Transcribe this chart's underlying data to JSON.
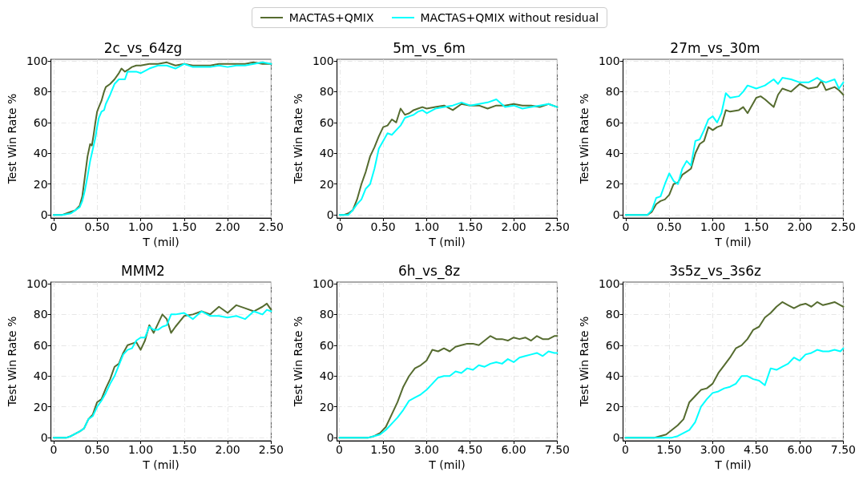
{
  "chart_data": [
    {
      "type": "line",
      "title": "2c_vs_64zg",
      "xlabel": "T (mil)",
      "ylabel": "Test Win Rate %",
      "legend": "top",
      "grid": true,
      "line_style": "solid",
      "xlim": [
        -0.03,
        2.5
      ],
      "xticks": [
        {
          "value": 0,
          "label": "0"
        },
        {
          "value": 0.5,
          "label": "0.50"
        },
        {
          "value": 1,
          "label": "1.00"
        },
        {
          "value": 1.5,
          "label": "1.50"
        },
        {
          "value": 2,
          "label": "2.00"
        },
        {
          "value": 2.5,
          "label": "2.50"
        }
      ],
      "ylim": [
        -2,
        101
      ],
      "yticks": [
        0,
        20,
        40,
        60,
        80,
        100
      ],
      "x": [
        0,
        0.1,
        0.15,
        0.2,
        0.25,
        0.3,
        0.33,
        0.36,
        0.39,
        0.42,
        0.44,
        0.46,
        0.48,
        0.5,
        0.52,
        0.55,
        0.58,
        0.6,
        0.65,
        0.7,
        0.75,
        0.78,
        0.82,
        0.85,
        0.9,
        0.95,
        1.0,
        1.1,
        1.2,
        1.3,
        1.4,
        1.5,
        1.6,
        1.7,
        1.8,
        1.9,
        2.0,
        2.1,
        2.2,
        2.3,
        2.4,
        2.5
      ],
      "series": [
        {
          "name": "MACTAS+QMIX",
          "color": "#556b2f",
          "values": [
            0,
            0,
            1,
            2,
            3,
            6,
            12,
            25,
            38,
            46,
            45,
            52,
            60,
            67,
            70,
            74,
            80,
            83,
            85,
            88,
            92,
            95,
            93,
            94,
            96,
            97,
            97,
            98,
            98,
            99,
            97,
            98,
            97,
            97,
            97,
            98,
            98,
            98,
            98,
            99,
            98,
            98
          ]
        },
        {
          "name": "MACTAS+QMIX without residual",
          "color": "#00ffff",
          "values": [
            0,
            0,
            0.5,
            1,
            3,
            5,
            9,
            16,
            25,
            35,
            40,
            45,
            50,
            57,
            63,
            67,
            68,
            72,
            78,
            85,
            88,
            88,
            88,
            93,
            93,
            93,
            92,
            95,
            97,
            97,
            95,
            98,
            96,
            96,
            96,
            97,
            96,
            97,
            97,
            98,
            99,
            98
          ]
        }
      ]
    },
    {
      "type": "line",
      "title": "5m_vs_6m",
      "xlabel": "T (mil)",
      "ylabel": "Test Win Rate %",
      "grid": true,
      "line_style": "solid",
      "xlim": [
        -0.03,
        2.5
      ],
      "xticks": [
        {
          "value": 0,
          "label": "0"
        },
        {
          "value": 0.5,
          "label": "0.50"
        },
        {
          "value": 1,
          "label": "1.00"
        },
        {
          "value": 1.5,
          "label": "1.50"
        },
        {
          "value": 2,
          "label": "2.00"
        },
        {
          "value": 2.5,
          "label": "2.50"
        }
      ],
      "ylim": [
        -2,
        101
      ],
      "yticks": [
        0,
        20,
        40,
        60,
        80,
        100
      ],
      "x": [
        0,
        0.05,
        0.1,
        0.15,
        0.2,
        0.25,
        0.3,
        0.35,
        0.4,
        0.45,
        0.5,
        0.55,
        0.6,
        0.65,
        0.7,
        0.75,
        0.8,
        0.85,
        0.9,
        0.95,
        1.0,
        1.1,
        1.2,
        1.3,
        1.4,
        1.5,
        1.6,
        1.7,
        1.8,
        1.9,
        2.0,
        2.1,
        2.2,
        2.3,
        2.4,
        2.5
      ],
      "series": [
        {
          "color": "#556b2f",
          "values": [
            0,
            0,
            1,
            3,
            10,
            20,
            28,
            38,
            44,
            51,
            57,
            58,
            62,
            60,
            69,
            65,
            66,
            68,
            69,
            70,
            69,
            70,
            71,
            68,
            72,
            71,
            71,
            69,
            71,
            71,
            72,
            71,
            71,
            70,
            72,
            70
          ]
        },
        {
          "color": "#00ffff",
          "values": [
            0,
            0,
            0,
            3,
            7,
            10,
            17,
            20,
            30,
            43,
            48,
            53,
            52,
            55,
            58,
            63,
            64,
            65,
            67,
            68,
            66,
            69,
            70,
            71,
            73,
            71,
            72,
            73,
            75,
            70,
            71,
            69,
            70,
            71,
            72,
            70
          ]
        }
      ]
    },
    {
      "type": "line",
      "title": "27m_vs_30m",
      "xlabel": "T (mil)",
      "ylabel": "Test Win Rate %",
      "grid": true,
      "line_style": "solid",
      "xlim": [
        -0.03,
        2.5
      ],
      "xticks": [
        {
          "value": 0,
          "label": "0"
        },
        {
          "value": 0.5,
          "label": "0.50"
        },
        {
          "value": 1,
          "label": "1.00"
        },
        {
          "value": 1.5,
          "label": "1.50"
        },
        {
          "value": 2,
          "label": "2.00"
        },
        {
          "value": 2.5,
          "label": "2.50"
        }
      ],
      "ylim": [
        -2,
        101
      ],
      "yticks": [
        0,
        20,
        40,
        60,
        80,
        100
      ],
      "x": [
        0,
        0.2,
        0.25,
        0.3,
        0.35,
        0.4,
        0.45,
        0.5,
        0.55,
        0.6,
        0.65,
        0.7,
        0.75,
        0.8,
        0.85,
        0.9,
        0.95,
        1.0,
        1.05,
        1.1,
        1.15,
        1.2,
        1.3,
        1.35,
        1.4,
        1.5,
        1.55,
        1.6,
        1.7,
        1.75,
        1.8,
        1.9,
        2.0,
        2.1,
        2.2,
        2.25,
        2.3,
        2.4,
        2.45,
        2.5
      ],
      "series": [
        {
          "color": "#556b2f",
          "values": [
            0,
            0,
            0,
            2,
            7,
            9,
            10,
            13,
            20,
            21,
            26,
            28,
            30,
            40,
            46,
            48,
            57,
            55,
            57,
            58,
            68,
            67,
            68,
            70,
            66,
            76,
            77,
            75,
            70,
            78,
            82,
            80,
            85,
            82,
            83,
            87,
            81,
            83,
            81,
            78
          ]
        },
        {
          "color": "#00ffff",
          "values": [
            0,
            0,
            0,
            3,
            11,
            12,
            20,
            27,
            22,
            20,
            30,
            35,
            32,
            48,
            49,
            55,
            62,
            64,
            60,
            66,
            79,
            76,
            77,
            80,
            84,
            82,
            83,
            84,
            88,
            85,
            89,
            88,
            86,
            86,
            89,
            87,
            86,
            88,
            82,
            86
          ]
        }
      ]
    },
    {
      "type": "line",
      "title": "MMM2",
      "xlabel": "T (mil)",
      "ylabel": "Test Win Rate %",
      "grid": true,
      "line_style": "solid",
      "xlim": [
        -0.03,
        2.5
      ],
      "xticks": [
        {
          "value": 0,
          "label": "0"
        },
        {
          "value": 0.5,
          "label": "0.50"
        },
        {
          "value": 1,
          "label": "1.00"
        },
        {
          "value": 1.5,
          "label": "1.50"
        },
        {
          "value": 2,
          "label": "2.00"
        },
        {
          "value": 2.5,
          "label": "2.50"
        }
      ],
      "ylim": [
        -2,
        101
      ],
      "yticks": [
        0,
        20,
        40,
        60,
        80,
        100
      ],
      "x": [
        0,
        0.15,
        0.2,
        0.3,
        0.35,
        0.4,
        0.45,
        0.5,
        0.55,
        0.6,
        0.65,
        0.7,
        0.75,
        0.8,
        0.85,
        0.9,
        0.95,
        1.0,
        1.05,
        1.1,
        1.15,
        1.2,
        1.25,
        1.3,
        1.35,
        1.4,
        1.5,
        1.6,
        1.7,
        1.8,
        1.9,
        2.0,
        2.1,
        2.2,
        2.3,
        2.4,
        2.45,
        2.5
      ],
      "series": [
        {
          "color": "#556b2f",
          "values": [
            0,
            0,
            1,
            4,
            6,
            12,
            15,
            23,
            25,
            32,
            38,
            46,
            48,
            55,
            60,
            61,
            62,
            57,
            63,
            73,
            68,
            74,
            80,
            77,
            68,
            72,
            79,
            80,
            82,
            80,
            85,
            81,
            86,
            84,
            82,
            85,
            87,
            83
          ]
        },
        {
          "color": "#00ffff",
          "values": [
            0,
            0,
            1,
            4,
            6,
            12,
            14,
            20,
            24,
            29,
            35,
            40,
            47,
            54,
            57,
            58,
            63,
            65,
            65,
            72,
            70,
            70,
            72,
            73,
            80,
            80,
            81,
            77,
            82,
            79,
            79,
            78,
            79,
            77,
            82,
            80,
            83,
            82
          ]
        }
      ]
    },
    {
      "type": "line",
      "title": "6h_vs_8z",
      "xlabel": "T (mil)",
      "ylabel": "Test Win Rate %",
      "grid": true,
      "line_style": "solid",
      "xlim": [
        -0.08,
        7.5
      ],
      "xticks": [
        {
          "value": 0,
          "label": "0"
        },
        {
          "value": 1.5,
          "label": "1.50"
        },
        {
          "value": 3,
          "label": "3.00"
        },
        {
          "value": 4.5,
          "label": "4.50"
        },
        {
          "value": 6,
          "label": "6.00"
        },
        {
          "value": 7.5,
          "label": "7.50"
        }
      ],
      "ylim": [
        -2,
        101
      ],
      "yticks": [
        0,
        20,
        40,
        60,
        80,
        100
      ],
      "x": [
        0,
        0.5,
        1.0,
        1.2,
        1.4,
        1.6,
        1.8,
        2.0,
        2.2,
        2.4,
        2.6,
        2.8,
        3.0,
        3.2,
        3.4,
        3.6,
        3.8,
        4.0,
        4.2,
        4.4,
        4.6,
        4.8,
        5.0,
        5.2,
        5.4,
        5.6,
        5.8,
        6.0,
        6.2,
        6.4,
        6.6,
        6.8,
        7.0,
        7.2,
        7.4,
        7.5
      ],
      "series": [
        {
          "color": "#556b2f",
          "values": [
            0,
            0,
            0,
            1,
            3,
            7,
            15,
            23,
            33,
            40,
            45,
            47,
            50,
            57,
            56,
            58,
            56,
            59,
            60,
            61,
            61,
            60,
            63,
            66,
            64,
            64,
            63,
            65,
            64,
            65,
            63,
            66,
            64,
            64,
            66,
            66
          ]
        },
        {
          "color": "#00ffff",
          "values": [
            0,
            0,
            0,
            1,
            2,
            5,
            9,
            13,
            18,
            24,
            26,
            28,
            31,
            35,
            39,
            40,
            40,
            43,
            42,
            45,
            44,
            47,
            46,
            48,
            49,
            48,
            51,
            49,
            52,
            53,
            54,
            55,
            53,
            56,
            55,
            55
          ]
        }
      ]
    },
    {
      "type": "line",
      "title": "3s5z_vs_3s6z",
      "xlabel": "T (mil)",
      "ylabel": "Test Win Rate %",
      "grid": true,
      "line_style": "solid",
      "xlim": [
        -0.08,
        7.5
      ],
      "xticks": [
        {
          "value": 0,
          "label": "0"
        },
        {
          "value": 1.5,
          "label": "1.50"
        },
        {
          "value": 3,
          "label": "3.00"
        },
        {
          "value": 4.5,
          "label": "4.50"
        },
        {
          "value": 6,
          "label": "6.00"
        },
        {
          "value": 7.5,
          "label": "7.50"
        }
      ],
      "ylim": [
        -2,
        101
      ],
      "yticks": [
        0,
        20,
        40,
        60,
        80,
        100
      ],
      "x": [
        0,
        1.0,
        1.2,
        1.4,
        1.6,
        1.8,
        2.0,
        2.2,
        2.4,
        2.6,
        2.8,
        3.0,
        3.2,
        3.4,
        3.6,
        3.8,
        4.0,
        4.2,
        4.4,
        4.6,
        4.8,
        5.0,
        5.2,
        5.4,
        5.6,
        5.8,
        6.0,
        6.2,
        6.4,
        6.6,
        6.8,
        7.0,
        7.2,
        7.4,
        7.5
      ],
      "series": [
        {
          "color": "#556b2f",
          "values": [
            0,
            0,
            1,
            2,
            5,
            8,
            12,
            23,
            27,
            31,
            32,
            35,
            42,
            47,
            52,
            58,
            60,
            64,
            70,
            72,
            78,
            81,
            85,
            88,
            86,
            84,
            86,
            87,
            85,
            88,
            86,
            87,
            88,
            86,
            85
          ]
        },
        {
          "color": "#00ffff",
          "values": [
            0,
            0,
            0,
            0,
            0,
            1,
            3,
            5,
            10,
            20,
            25,
            29,
            30,
            32,
            33,
            35,
            40,
            40,
            38,
            37,
            34,
            45,
            44,
            46,
            48,
            52,
            50,
            54,
            55,
            57,
            56,
            56,
            57,
            56,
            58
          ]
        }
      ]
    }
  ]
}
